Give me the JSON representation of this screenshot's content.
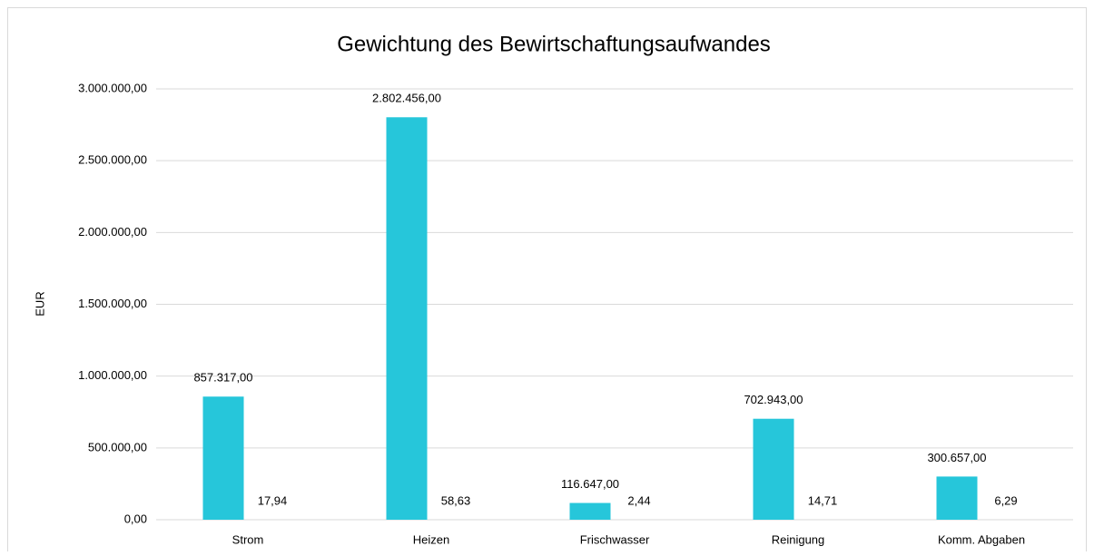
{
  "chart_data": {
    "type": "bar",
    "title": "Gewichtung des Bewirtschaftungsaufwandes",
    "y_label": "EUR",
    "categories": [
      "Strom",
      "Heizen",
      "Frischwasser",
      "Reinigung",
      "Komm. Abgaben"
    ],
    "series": [
      {
        "color": "#26c6da",
        "values": [
          857317,
          2802456,
          116647,
          702943,
          300657
        ],
        "value_labels": [
          "857.317,00",
          "2.802.456,00",
          "116.647,00",
          "702.943,00",
          "300.657,00"
        ]
      },
      {
        "color": "#26c6da",
        "values": [
          17.94,
          58.63,
          2.44,
          14.71,
          6.29
        ],
        "value_labels": [
          "17,94",
          "58,63",
          "2,44",
          "14,71",
          "6,29"
        ]
      }
    ],
    "ylim": [
      0,
      3000000
    ],
    "yticks": [
      {
        "value": 0,
        "label": "0,00"
      },
      {
        "value": 500000,
        "label": "500.000,00"
      },
      {
        "value": 1000000,
        "label": "1.000.000,00"
      },
      {
        "value": 1500000,
        "label": "1.500.000,00"
      },
      {
        "value": 2000000,
        "label": "2.000.000,00"
      },
      {
        "value": 2500000,
        "label": "2.500.000,00"
      },
      {
        "value": 3000000,
        "label": "3.000.000,00"
      }
    ],
    "grid": true
  }
}
